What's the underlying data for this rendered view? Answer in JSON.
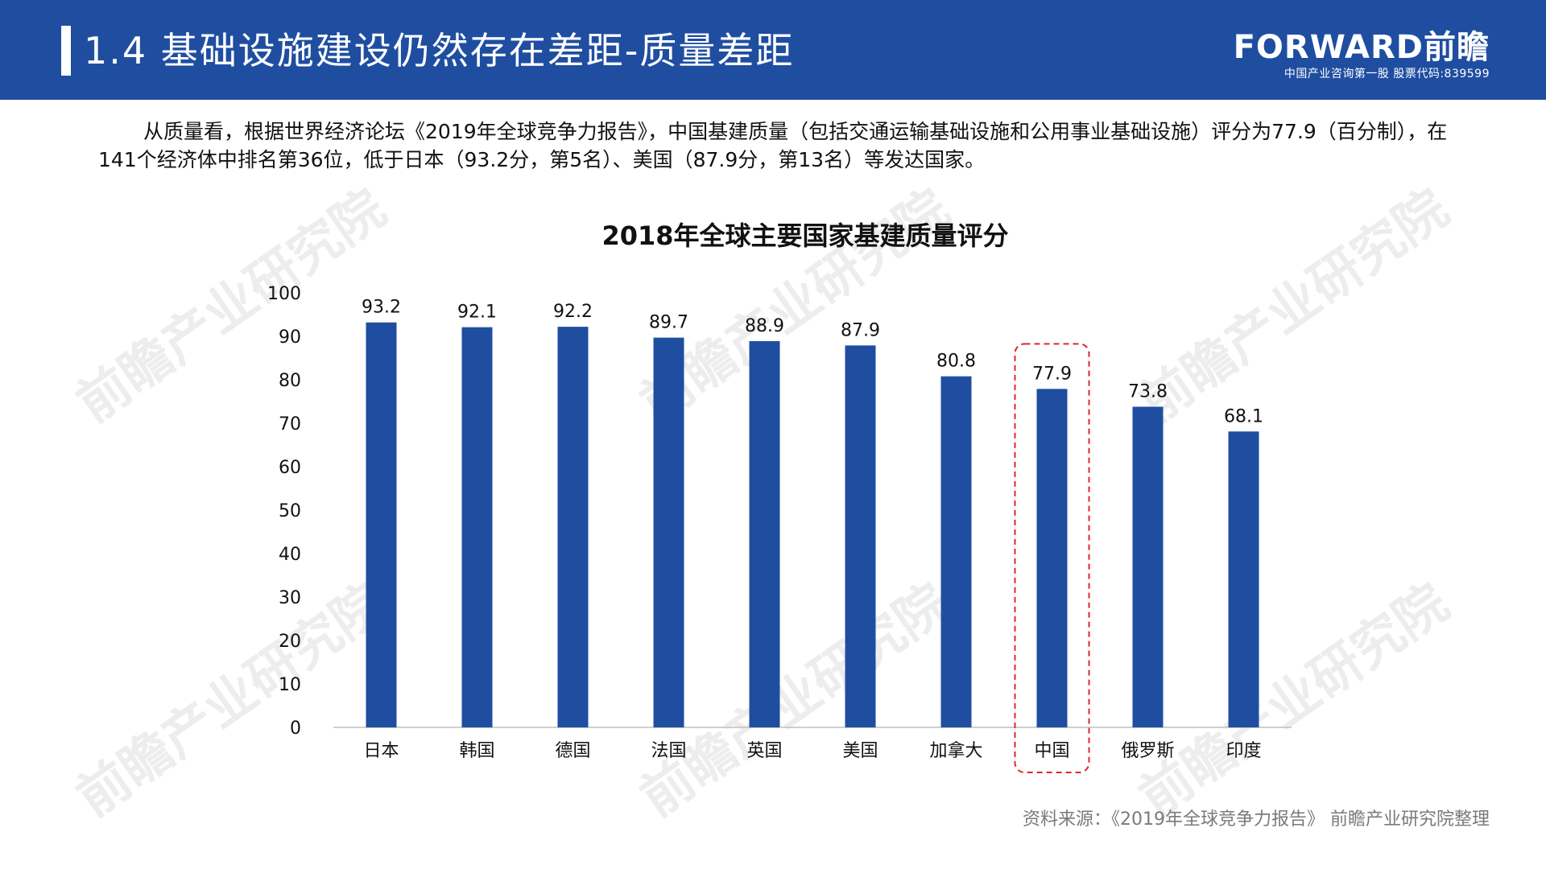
{
  "header": {
    "title": "1.4 基础设施建设仍然存在差距-质量差距",
    "logo_name": "FORWARD前瞻",
    "logo_sub": "中国产业咨询第一股 股票代码:839599"
  },
  "intro": "从质量看，根据世界经济论坛《2019年全球竞争力报告》，中国基建质量（包括交通运输基础设施和公用事业基础设施）评分为77.9（百分制），在141个经济体中排名第36位，低于日本（93.2分，第5名）、美国（87.9分，第13名）等发达国家。",
  "watermark": "前瞻产业研究院",
  "source": "资料来源：《2019年全球竞争力报告》 前瞻产业研究院整理",
  "colors": {
    "header": "#1f4ea1",
    "bar": "#1f4ea1",
    "highlight": "#e0262b"
  },
  "chart_data": {
    "type": "bar",
    "title": "2018年全球主要国家基建质量评分",
    "categories": [
      "日本",
      "韩国",
      "德国",
      "法国",
      "英国",
      "美国",
      "加拿大",
      "中国",
      "俄罗斯",
      "印度"
    ],
    "values": [
      93.2,
      92.1,
      92.2,
      89.7,
      88.9,
      87.9,
      80.8,
      77.9,
      73.8,
      68.1
    ],
    "value_labels": [
      "93.2",
      "92.1",
      "92.2",
      "89.7",
      "88.9",
      "87.9",
      "80.8",
      "77.9",
      "73.8",
      "68.1"
    ],
    "yticks": [
      "0",
      "10",
      "20",
      "30",
      "40",
      "50",
      "60",
      "70",
      "80",
      "90",
      "100"
    ],
    "ylim": [
      0,
      100
    ],
    "grid": false,
    "highlight_category": "中国"
  }
}
